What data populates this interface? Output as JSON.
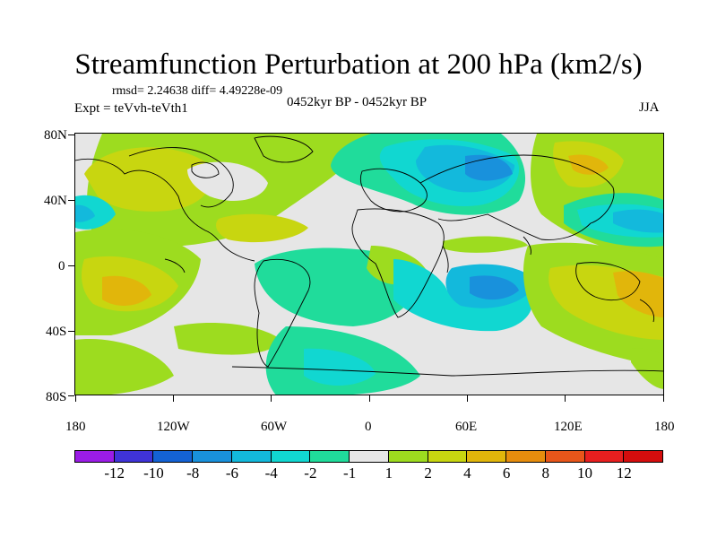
{
  "title": "Streamfunction Perturbation at 200 hPa (km2/s)",
  "stats": "rmsd= 2.24638 diff= 4.49228e-09",
  "experiment": "Expt = teVvh-teVth1",
  "period": "0452kyr BP - 0452kyr BP",
  "season": "JJA",
  "lat_ticks": [
    "80N",
    "40N",
    "0",
    "40S",
    "80S"
  ],
  "lon_ticks": [
    "180",
    "120W",
    "60W",
    "0",
    "60E",
    "120E",
    "180"
  ],
  "colorbar": {
    "labels": [
      "-12",
      "-10",
      "-8",
      "-6",
      "-4",
      "-2",
      "-1",
      "1",
      "2",
      "4",
      "6",
      "8",
      "10",
      "12"
    ],
    "colors": [
      "#9b1ce6",
      "#3f33d7",
      "#1462d4",
      "#1991dc",
      "#13b9dc",
      "#11d7d1",
      "#20dc9b",
      "#e6e6e6",
      "#9ddc1f",
      "#c8d610",
      "#e1b60b",
      "#e68d0d",
      "#e8561a",
      "#e81f1f",
      "#d50d0d"
    ]
  }
}
